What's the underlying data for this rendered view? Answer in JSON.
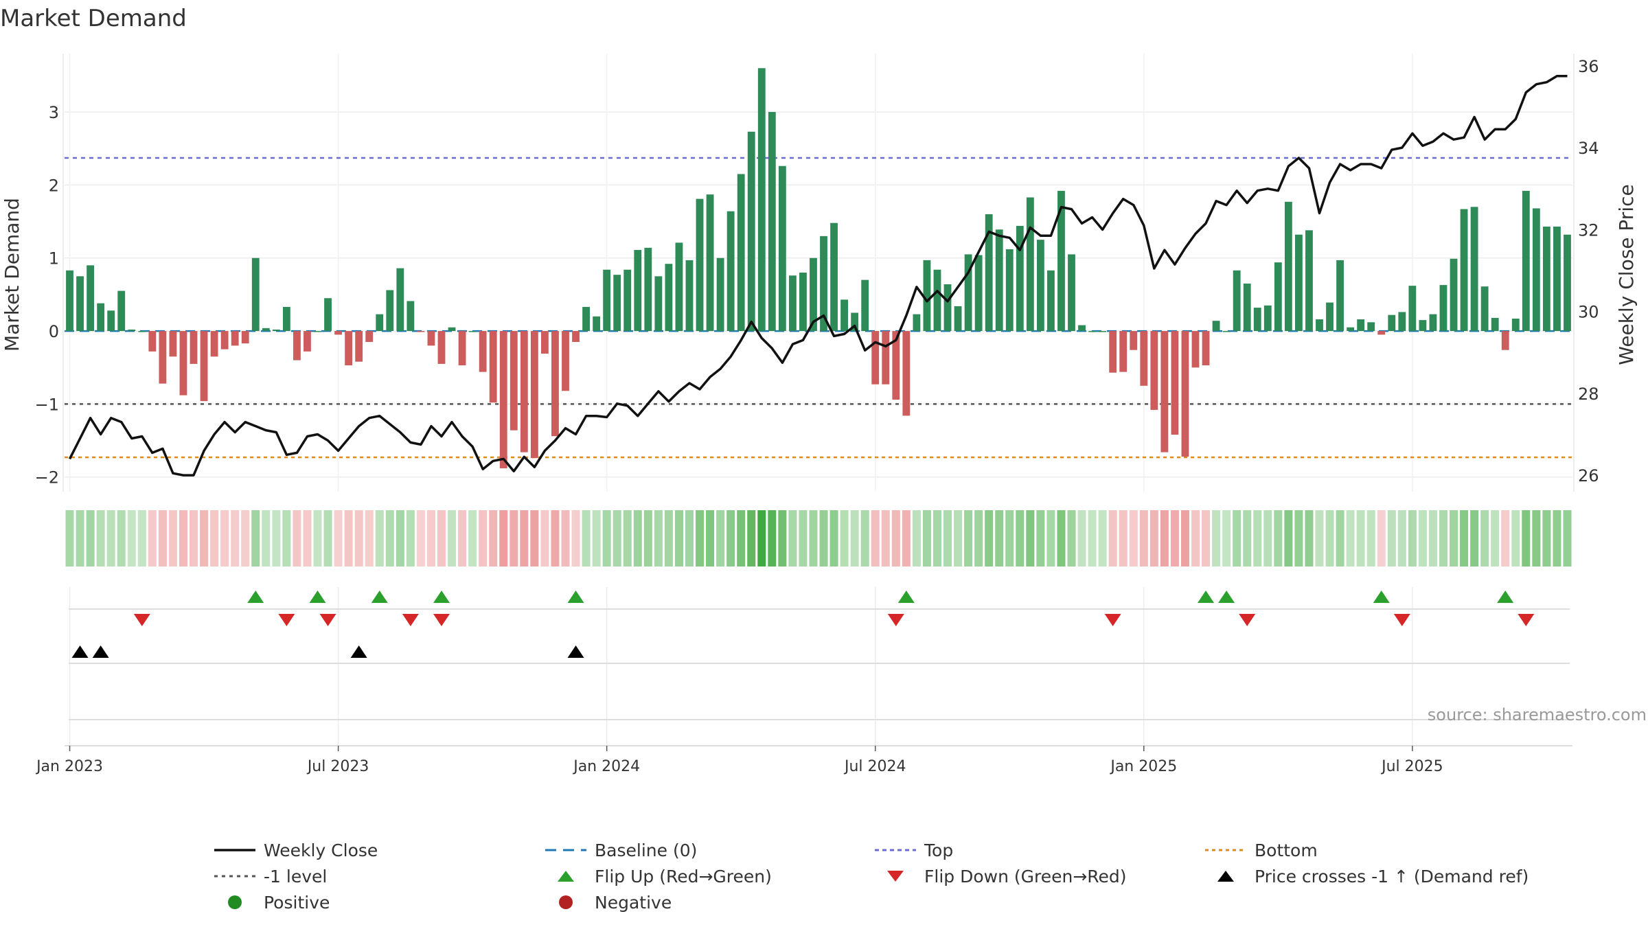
{
  "chart_data": {
    "type": "bar",
    "title": "Market Demand",
    "ylabel": "Market Demand",
    "y2label": "Weekly Close Price",
    "source": "source: sharemaestro.com",
    "ylim": [
      -2.2,
      3.8
    ],
    "y2lim": [
      25.6,
      36.3
    ],
    "yticks": [
      {
        "v": 3,
        "label": "3"
      },
      {
        "v": 2,
        "label": "2"
      },
      {
        "v": 1,
        "label": "1"
      },
      {
        "v": 0,
        "label": "0"
      },
      {
        "v": -1,
        "label": "−1"
      },
      {
        "v": -2,
        "label": "−2"
      }
    ],
    "y2ticks": [
      {
        "v": 36,
        "label": "36"
      },
      {
        "v": 34,
        "label": "34"
      },
      {
        "v": 32,
        "label": "32"
      },
      {
        "v": 30,
        "label": "30"
      },
      {
        "v": 28,
        "label": "28"
      },
      {
        "v": 26,
        "label": "26"
      }
    ],
    "xticks": [
      {
        "week": 1,
        "label": "Jan 2023"
      },
      {
        "week": 27,
        "label": "Jul 2023"
      },
      {
        "week": 53,
        "label": "Jan 2024"
      },
      {
        "week": 79,
        "label": "Jul 2024"
      },
      {
        "week": 105,
        "label": "Jan 2025"
      },
      {
        "week": 131,
        "label": "Jul 2025"
      }
    ],
    "reference_lines": {
      "baseline": 0,
      "top": 2.37,
      "minus_one": -1,
      "bottom": -1.73
    },
    "demand": [
      0.83,
      0.75,
      0.9,
      0.38,
      0.28,
      0.55,
      0.02,
      0.0,
      -0.28,
      -0.72,
      -0.35,
      -0.88,
      -0.45,
      -0.96,
      -0.35,
      -0.25,
      -0.2,
      -0.17,
      1.0,
      0.04,
      0.02,
      0.33,
      -0.4,
      -0.28,
      0.0,
      0.45,
      -0.05,
      -0.47,
      -0.42,
      -0.15,
      0.23,
      0.56,
      0.86,
      0.41,
      -0.01,
      -0.2,
      -0.45,
      0.05,
      -0.47,
      0.0,
      -0.56,
      -0.98,
      -1.88,
      -1.36,
      -1.66,
      -1.74,
      -0.31,
      -1.44,
      -0.82,
      -0.15,
      0.33,
      0.2,
      0.84,
      0.77,
      0.84,
      1.11,
      1.14,
      0.75,
      0.92,
      1.21,
      0.97,
      1.81,
      1.87,
      1.0,
      1.64,
      2.15,
      2.73,
      3.6,
      3.0,
      2.26,
      0.76,
      0.8,
      1.0,
      1.3,
      1.48,
      0.43,
      0.25,
      0.7,
      -0.73,
      -0.73,
      -0.94,
      -1.16,
      0.23,
      0.97,
      0.84,
      0.64,
      0.34,
      1.05,
      1.04,
      1.6,
      1.39,
      1.12,
      1.44,
      1.83,
      1.25,
      0.83,
      1.92,
      1.05,
      0.08,
      0.0,
      0.0,
      -0.57,
      -0.56,
      -0.26,
      -0.75,
      -1.08,
      -1.66,
      -1.42,
      -1.72,
      -0.5,
      -0.47,
      0.14,
      0.0,
      0.83,
      0.65,
      0.32,
      0.35,
      0.94,
      1.77,
      1.32,
      1.38,
      0.16,
      0.39,
      0.97,
      0.05,
      0.16,
      0.12,
      -0.05,
      0.22,
      0.26,
      0.62,
      0.15,
      0.23,
      0.63,
      0.99,
      1.67,
      1.7,
      0.61,
      0.18,
      -0.26,
      0.17,
      1.92,
      1.68,
      1.43,
      1.43,
      1.32
    ],
    "weekly_close": [
      26.4,
      26.9,
      27.4,
      27.0,
      27.4,
      27.3,
      26.9,
      26.95,
      26.55,
      26.65,
      26.05,
      26.0,
      26.0,
      26.6,
      27.0,
      27.3,
      27.05,
      27.3,
      27.2,
      27.1,
      27.05,
      26.5,
      26.55,
      26.95,
      27.0,
      26.85,
      26.6,
      26.9,
      27.2,
      27.4,
      27.45,
      27.25,
      27.05,
      26.8,
      26.75,
      27.2,
      26.95,
      27.3,
      26.95,
      26.7,
      26.15,
      26.35,
      26.4,
      26.1,
      26.45,
      26.2,
      26.6,
      26.85,
      27.15,
      27.0,
      27.45,
      27.45,
      27.42,
      27.75,
      27.7,
      27.45,
      27.75,
      28.05,
      27.8,
      28.05,
      28.25,
      28.1,
      28.4,
      28.6,
      28.9,
      29.3,
      29.75,
      29.35,
      29.1,
      28.75,
      29.2,
      29.3,
      29.75,
      29.9,
      29.4,
      29.45,
      29.65,
      29.05,
      29.25,
      29.15,
      29.3,
      29.9,
      30.6,
      30.25,
      30.5,
      30.25,
      30.6,
      30.95,
      31.45,
      31.95,
      31.85,
      31.8,
      31.5,
      32.05,
      31.85,
      31.85,
      32.55,
      32.5,
      32.15,
      32.3,
      32.0,
      32.4,
      32.75,
      32.6,
      32.1,
      31.05,
      31.5,
      31.15,
      31.55,
      31.9,
      32.15,
      32.7,
      32.6,
      32.95,
      32.65,
      32.95,
      33.0,
      32.95,
      33.55,
      33.75,
      33.5,
      32.4,
      33.15,
      33.6,
      33.45,
      33.6,
      33.6,
      33.5,
      33.95,
      34.0,
      34.35,
      34.05,
      34.15,
      34.35,
      34.2,
      34.25,
      34.75,
      34.2,
      34.45,
      34.45,
      34.7,
      35.35,
      35.55,
      35.6,
      35.75,
      35.75
    ],
    "flip_up": [
      19,
      25,
      31,
      37,
      50,
      82,
      111,
      113,
      128,
      140
    ],
    "flip_down": [
      8,
      22,
      26,
      34,
      37,
      81,
      102,
      115,
      130,
      142
    ],
    "price_cross": [
      2,
      4,
      29,
      50
    ],
    "legend": [
      {
        "key": "weekly_close",
        "label": "Weekly Close"
      },
      {
        "key": "baseline",
        "label": "Baseline (0)"
      },
      {
        "key": "top",
        "label": "Top"
      },
      {
        "key": "bottom",
        "label": "Bottom"
      },
      {
        "key": "minus_one",
        "label": "-1 level"
      },
      {
        "key": "flip_up",
        "label": "Flip Up (Red→Green)"
      },
      {
        "key": "flip_down",
        "label": "Flip Down (Green→Red)"
      },
      {
        "key": "price_cross",
        "label": "Price crosses -1 ↑ (Demand ref)"
      },
      {
        "key": "positive",
        "label": "Positive"
      },
      {
        "key": "negative",
        "label": "Negative"
      }
    ],
    "colors": {
      "positive": "#2e8b57",
      "negative": "#cd5c5c",
      "price": "#111111",
      "baseline": "#1f77b4",
      "top": "#6b6bd6",
      "bottom": "#e08a1e",
      "minus_one": "#555555",
      "flip_up": "#2ca02c",
      "flip_down": "#d62728",
      "cross": "#000000",
      "dot_positive": "#228b22",
      "dot_negative": "#b22222"
    }
  }
}
